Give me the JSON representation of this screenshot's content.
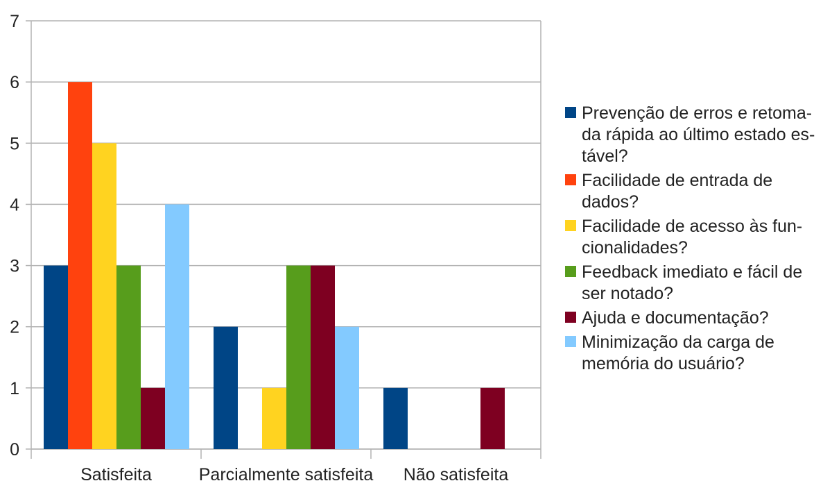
{
  "chart_data": {
    "type": "bar",
    "title": "",
    "xlabel": "",
    "ylabel": "",
    "ylim": [
      0,
      7
    ],
    "yticks": [
      0,
      1,
      2,
      3,
      4,
      5,
      6,
      7
    ],
    "grid": true,
    "legend_position": "right",
    "categories": [
      "Satisfeita",
      "Parcialmente satisfeita",
      "Não satisfeita"
    ],
    "series": [
      {
        "name": "Prevenção de erros e retoma-da rápida ao último estado es-tável?",
        "color": "#004586",
        "values": [
          3,
          2,
          1
        ]
      },
      {
        "name": "Facilidade de entrada de dados?",
        "color": "#ff420e",
        "values": [
          6,
          0,
          0
        ]
      },
      {
        "name": "Facilidade de acesso às fun-cionalidades?",
        "color": "#ffd320",
        "values": [
          5,
          1,
          0
        ]
      },
      {
        "name": "Feedback imediato e fácil de ser notado?",
        "color": "#579d1c",
        "values": [
          3,
          3,
          0
        ]
      },
      {
        "name": "Ajuda e documentação?",
        "color": "#7e0021",
        "values": [
          1,
          3,
          1
        ]
      },
      {
        "name": "Minimização da carga de memória do usuário?",
        "color": "#83caff",
        "values": [
          4,
          2,
          0
        ]
      }
    ]
  },
  "legend": {
    "items": [
      {
        "label": "Prevenção de erros e retoma-da rápida ao último estado es-tável?",
        "color": "#004586"
      },
      {
        "label": "Facilidade de entrada de dados?",
        "color": "#ff420e"
      },
      {
        "label": "Facilidade de acesso às fun-cionalidades?",
        "color": "#ffd320"
      },
      {
        "label": "Feedback imediato e fácil de ser notado?",
        "color": "#579d1c"
      },
      {
        "label": "Ajuda e documentação?",
        "color": "#7e0021"
      },
      {
        "label": "Minimização da carga de memória do usuário?",
        "color": "#83caff"
      }
    ]
  }
}
